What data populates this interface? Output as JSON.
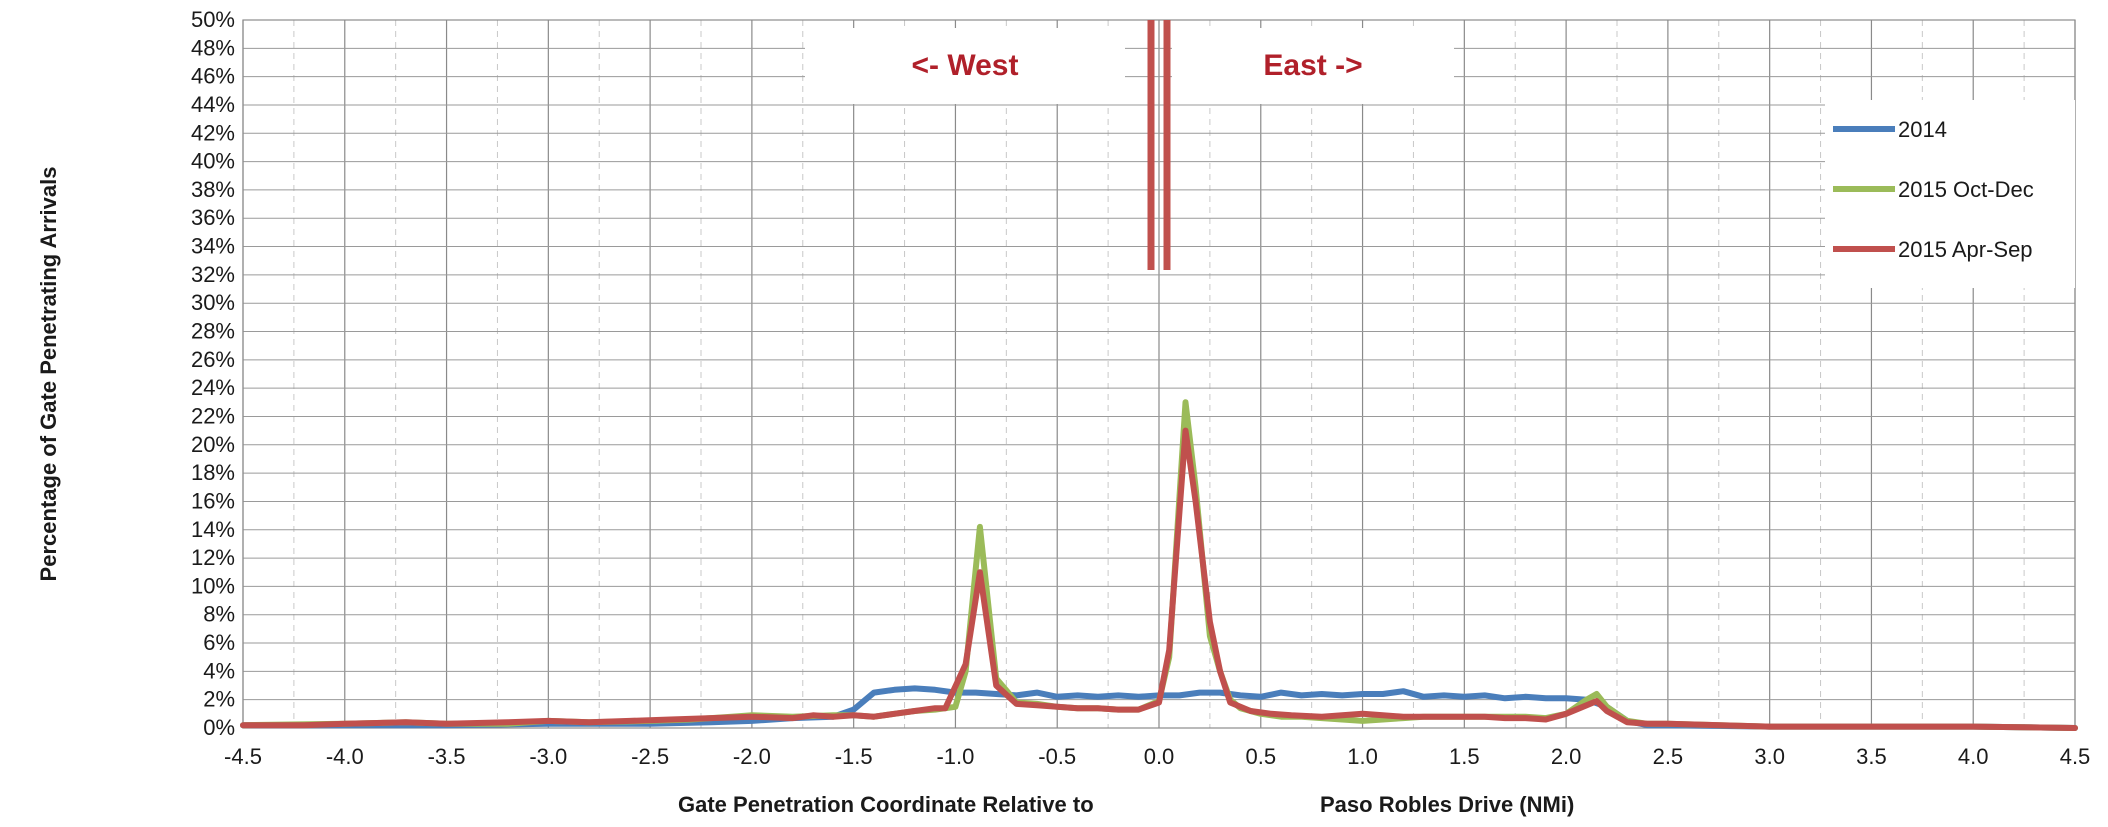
{
  "chart_data": {
    "type": "line",
    "title": "",
    "xlabel_left": "Gate Penetration Coordinate Relative to",
    "xlabel_right": "Paso Robles Drive (NMi)",
    "ylabel": "Percentage of Gate Penetrating Arrivals",
    "xlim": [
      -4.5,
      4.5
    ],
    "ylim": [
      0,
      50
    ],
    "x_ticks": [
      "-4.5",
      "-4.0",
      "-3.5",
      "-3.0",
      "-2.5",
      "-2.0",
      "-1.5",
      "-1.0",
      "-0.5",
      "0.0",
      "0.5",
      "1.0",
      "1.5",
      "2.0",
      "2.5",
      "3.0",
      "3.5",
      "4.0",
      "4.5"
    ],
    "y_ticks": [
      "0%",
      "2%",
      "4%",
      "6%",
      "8%",
      "10%",
      "12%",
      "14%",
      "16%",
      "18%",
      "20%",
      "22%",
      "24%",
      "26%",
      "28%",
      "30%",
      "32%",
      "34%",
      "36%",
      "38%",
      "40%",
      "42%",
      "44%",
      "46%",
      "48%",
      "50%"
    ],
    "grid": true,
    "legend_position": "right",
    "annotations": {
      "west": "<- West",
      "east": "East ->"
    },
    "divider_x": 0.0,
    "series": [
      {
        "name": "2014",
        "color": "#4a7ebb",
        "points": [
          [
            -4.5,
            0.2
          ],
          [
            -4.0,
            0.2
          ],
          [
            -3.5,
            0.2
          ],
          [
            -3.0,
            0.3
          ],
          [
            -2.5,
            0.3
          ],
          [
            -2.2,
            0.4
          ],
          [
            -2.0,
            0.5
          ],
          [
            -1.8,
            0.7
          ],
          [
            -1.6,
            0.8
          ],
          [
            -1.5,
            1.3
          ],
          [
            -1.4,
            2.5
          ],
          [
            -1.3,
            2.7
          ],
          [
            -1.2,
            2.8
          ],
          [
            -1.1,
            2.7
          ],
          [
            -1.0,
            2.5
          ],
          [
            -0.9,
            2.5
          ],
          [
            -0.8,
            2.4
          ],
          [
            -0.7,
            2.3
          ],
          [
            -0.6,
            2.5
          ],
          [
            -0.5,
            2.2
          ],
          [
            -0.4,
            2.3
          ],
          [
            -0.3,
            2.2
          ],
          [
            -0.2,
            2.3
          ],
          [
            -0.1,
            2.2
          ],
          [
            0.0,
            2.3
          ],
          [
            0.1,
            2.3
          ],
          [
            0.2,
            2.5
          ],
          [
            0.3,
            2.5
          ],
          [
            0.4,
            2.3
          ],
          [
            0.5,
            2.2
          ],
          [
            0.6,
            2.5
          ],
          [
            0.7,
            2.3
          ],
          [
            0.8,
            2.4
          ],
          [
            0.9,
            2.3
          ],
          [
            1.0,
            2.4
          ],
          [
            1.1,
            2.4
          ],
          [
            1.2,
            2.6
          ],
          [
            1.3,
            2.2
          ],
          [
            1.4,
            2.3
          ],
          [
            1.5,
            2.2
          ],
          [
            1.6,
            2.3
          ],
          [
            1.7,
            2.1
          ],
          [
            1.8,
            2.2
          ],
          [
            1.9,
            2.1
          ],
          [
            2.0,
            2.1
          ],
          [
            2.1,
            2.0
          ],
          [
            2.2,
            1.5
          ],
          [
            2.3,
            0.5
          ],
          [
            2.4,
            0.2
          ],
          [
            2.5,
            0.2
          ],
          [
            3.0,
            0.1
          ],
          [
            3.5,
            0.1
          ],
          [
            4.0,
            0.1
          ],
          [
            4.5,
            0.0
          ]
        ]
      },
      {
        "name": "2015 Oct-Dec",
        "color": "#9bbb59",
        "points": [
          [
            -4.5,
            0.2
          ],
          [
            -4.0,
            0.3
          ],
          [
            -3.7,
            0.4
          ],
          [
            -3.5,
            0.3
          ],
          [
            -3.2,
            0.3
          ],
          [
            -3.0,
            0.5
          ],
          [
            -2.8,
            0.4
          ],
          [
            -2.5,
            0.5
          ],
          [
            -2.3,
            0.6
          ],
          [
            -2.1,
            0.8
          ],
          [
            -2.0,
            0.9
          ],
          [
            -1.8,
            0.8
          ],
          [
            -1.6,
            0.9
          ],
          [
            -1.5,
            0.9
          ],
          [
            -1.4,
            0.8
          ],
          [
            -1.3,
            1.0
          ],
          [
            -1.2,
            1.2
          ],
          [
            -1.1,
            1.3
          ],
          [
            -1.0,
            1.5
          ],
          [
            -0.95,
            4.0
          ],
          [
            -0.88,
            14.2
          ],
          [
            -0.8,
            3.5
          ],
          [
            -0.7,
            1.8
          ],
          [
            -0.6,
            1.7
          ],
          [
            -0.5,
            1.5
          ],
          [
            -0.4,
            1.4
          ],
          [
            -0.3,
            1.4
          ],
          [
            -0.2,
            1.3
          ],
          [
            -0.1,
            1.3
          ],
          [
            0.0,
            1.9
          ],
          [
            0.05,
            5.0
          ],
          [
            0.13,
            23.0
          ],
          [
            0.18,
            17.0
          ],
          [
            0.25,
            6.5
          ],
          [
            0.3,
            4.0
          ],
          [
            0.35,
            2.0
          ],
          [
            0.4,
            1.4
          ],
          [
            0.5,
            1.0
          ],
          [
            0.6,
            0.8
          ],
          [
            0.7,
            0.8
          ],
          [
            0.8,
            0.7
          ],
          [
            0.9,
            0.6
          ],
          [
            1.0,
            0.5
          ],
          [
            1.1,
            0.6
          ],
          [
            1.2,
            0.7
          ],
          [
            1.3,
            0.8
          ],
          [
            1.4,
            0.8
          ],
          [
            1.5,
            0.8
          ],
          [
            1.6,
            0.8
          ],
          [
            1.7,
            0.8
          ],
          [
            1.8,
            0.8
          ],
          [
            1.9,
            0.7
          ],
          [
            2.0,
            1.0
          ],
          [
            2.1,
            2.0
          ],
          [
            2.15,
            2.4
          ],
          [
            2.2,
            1.5
          ],
          [
            2.3,
            0.5
          ],
          [
            2.4,
            0.3
          ],
          [
            2.5,
            0.3
          ],
          [
            3.0,
            0.1
          ],
          [
            3.5,
            0.1
          ],
          [
            4.0,
            0.1
          ],
          [
            4.5,
            0.0
          ]
        ]
      },
      {
        "name": "2015 Apr-Sep",
        "color": "#c0504d",
        "points": [
          [
            -4.5,
            0.2
          ],
          [
            -4.2,
            0.2
          ],
          [
            -4.0,
            0.3
          ],
          [
            -3.7,
            0.4
          ],
          [
            -3.5,
            0.3
          ],
          [
            -3.2,
            0.4
          ],
          [
            -3.0,
            0.5
          ],
          [
            -2.8,
            0.4
          ],
          [
            -2.6,
            0.5
          ],
          [
            -2.4,
            0.6
          ],
          [
            -2.2,
            0.7
          ],
          [
            -2.0,
            0.8
          ],
          [
            -1.8,
            0.7
          ],
          [
            -1.7,
            0.9
          ],
          [
            -1.6,
            0.8
          ],
          [
            -1.5,
            0.9
          ],
          [
            -1.4,
            0.8
          ],
          [
            -1.3,
            1.0
          ],
          [
            -1.2,
            1.2
          ],
          [
            -1.1,
            1.4
          ],
          [
            -1.05,
            1.4
          ],
          [
            -0.95,
            4.5
          ],
          [
            -0.88,
            11.0
          ],
          [
            -0.8,
            3.0
          ],
          [
            -0.7,
            1.7
          ],
          [
            -0.6,
            1.6
          ],
          [
            -0.5,
            1.5
          ],
          [
            -0.4,
            1.4
          ],
          [
            -0.3,
            1.4
          ],
          [
            -0.2,
            1.3
          ],
          [
            -0.1,
            1.3
          ],
          [
            0.0,
            1.8
          ],
          [
            0.05,
            5.5
          ],
          [
            0.13,
            21.0
          ],
          [
            0.18,
            16.0
          ],
          [
            0.25,
            7.5
          ],
          [
            0.3,
            4.0
          ],
          [
            0.35,
            1.8
          ],
          [
            0.45,
            1.2
          ],
          [
            0.55,
            1.0
          ],
          [
            0.65,
            0.9
          ],
          [
            0.8,
            0.8
          ],
          [
            0.9,
            0.9
          ],
          [
            1.0,
            1.0
          ],
          [
            1.1,
            0.9
          ],
          [
            1.2,
            0.8
          ],
          [
            1.3,
            0.8
          ],
          [
            1.4,
            0.8
          ],
          [
            1.5,
            0.8
          ],
          [
            1.6,
            0.8
          ],
          [
            1.7,
            0.7
          ],
          [
            1.8,
            0.7
          ],
          [
            1.9,
            0.6
          ],
          [
            2.0,
            1.0
          ],
          [
            2.1,
            1.6
          ],
          [
            2.15,
            1.9
          ],
          [
            2.2,
            1.2
          ],
          [
            2.3,
            0.4
          ],
          [
            2.4,
            0.3
          ],
          [
            2.5,
            0.3
          ],
          [
            3.0,
            0.1
          ],
          [
            3.5,
            0.1
          ],
          [
            4.0,
            0.1
          ],
          [
            4.5,
            0.0
          ]
        ]
      }
    ]
  }
}
